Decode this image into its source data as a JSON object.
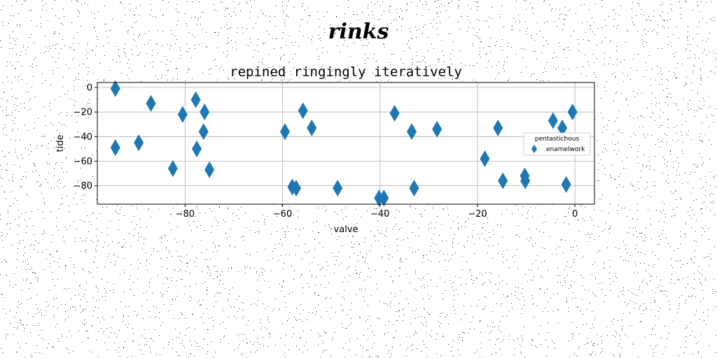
{
  "figure": {
    "suptitle": "rinks"
  },
  "chart_data": {
    "type": "scatter",
    "title": "repined ringingly iteratively",
    "xlabel": "valve",
    "ylabel": "tide",
    "xlim": [
      -98,
      4
    ],
    "ylim": [
      -95,
      4
    ],
    "xticks": [
      -80,
      -60,
      -40,
      -20,
      0
    ],
    "yticks": [
      0,
      -20,
      -40,
      -60,
      -80
    ],
    "grid": true,
    "marker": "diamond",
    "color": "#1f77b4",
    "legend": {
      "title": "pentastichous",
      "placement": "center-right",
      "entries": [
        "enamelwork"
      ]
    },
    "series": [
      {
        "name": "enamelwork",
        "x": [
          -94.3,
          -94.3,
          -89.5,
          -87.0,
          -82.5,
          -80.5,
          -77.8,
          -77.6,
          -76.2,
          -76.0,
          -75.0,
          -59.5,
          -58.0,
          -57.2,
          -55.8,
          -54.0,
          -48.7,
          -40.2,
          -39.2,
          -37.0,
          -33.5,
          -33.0,
          -28.3,
          -18.5,
          -15.8,
          -14.8,
          -10.3,
          -10.2,
          -4.5,
          -2.6,
          -1.8,
          -0.5
        ],
        "y": [
          -1,
          -49,
          -45,
          -13,
          -66,
          -22,
          -10,
          -50,
          -36,
          -20,
          -67,
          -36,
          -81,
          -82,
          -19,
          -33,
          -82,
          -90,
          -90,
          -21,
          -36,
          -82,
          -34,
          -58,
          -33,
          -76,
          -72,
          -76,
          -27,
          -33,
          -79,
          -20
        ]
      }
    ]
  }
}
